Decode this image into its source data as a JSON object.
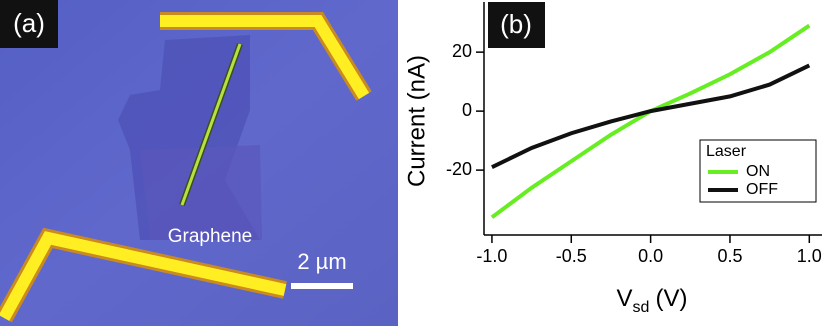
{
  "panel_a": {
    "label": "(a)",
    "annotation": "Graphene",
    "scale_bar": "2 µm"
  },
  "chart_data": {
    "type": "line",
    "panel_label": "(b)",
    "y_label": "Current (nA)",
    "x_label": "V",
    "x_label_sub": "sd",
    "x_label_unit": "(V)",
    "x": [
      -1.0,
      -0.75,
      -0.5,
      -0.25,
      0.0,
      0.25,
      0.5,
      0.75,
      1.0
    ],
    "series": [
      {
        "name": "ON",
        "color": "#66ee22",
        "values": [
          -36,
          -26,
          -17,
          -8,
          0,
          6,
          12.5,
          20,
          29
        ]
      },
      {
        "name": "OFF",
        "color": "#111111",
        "values": [
          -19,
          -12.5,
          -7.5,
          -3.5,
          0,
          2.5,
          5,
          9,
          15.5
        ]
      }
    ],
    "legend_title": "Laser",
    "legend": "lower right",
    "xlim": [
      -1.05,
      1.08
    ],
    "xticks": [
      {
        "value": -1.0,
        "label": "-1.0"
      },
      -0.5,
      {
        "value": 0.0,
        "label": "0.0"
      },
      0.5,
      {
        "value": 1.0,
        "label": "1.0"
      }
    ],
    "ylim": [
      -42,
      37
    ],
    "yticks": [
      -20,
      0,
      20
    ],
    "grid": false
  }
}
